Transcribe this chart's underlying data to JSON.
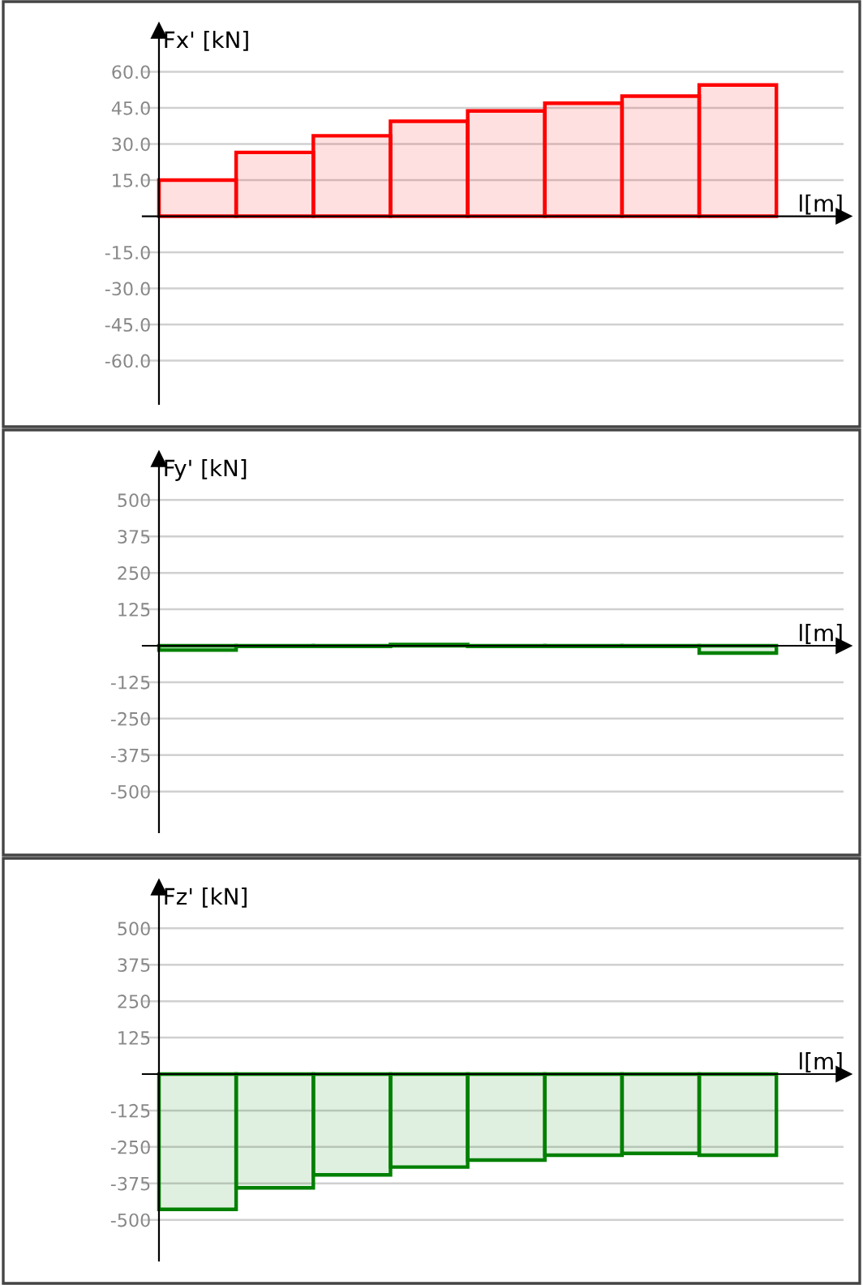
{
  "chart_data": [
    {
      "type": "bar",
      "ylabel": "Fx' [kN]",
      "xlabel": "l[m]",
      "categories": [
        null,
        null,
        null,
        null,
        null,
        null,
        null,
        null
      ],
      "color": "#ff0000",
      "values": [
        15,
        26.5,
        33.4,
        39.4,
        43.7,
        46.9,
        49.9,
        54.5
      ],
      "ylim": [
        -78,
        77
      ],
      "yticks": [
        {
          "value": 60,
          "label": "60.0"
        },
        {
          "value": 45,
          "label": "45.0"
        },
        {
          "value": 30,
          "label": "30.0"
        },
        {
          "value": 15,
          "label": "15.0"
        },
        {
          "value": -15,
          "label": "-15.0"
        },
        {
          "value": -30,
          "label": "-30.0"
        },
        {
          "value": -45,
          "label": "-45.0"
        },
        {
          "value": -60,
          "label": "-60.0"
        }
      ],
      "grid": "y",
      "tick_labels": "y"
    },
    {
      "type": "bar",
      "ylabel": "Fy' [kN]",
      "xlabel": "l[m]",
      "categories": [
        null,
        null,
        null,
        null,
        null,
        null,
        null,
        null
      ],
      "color": "#008000",
      "values": [
        -15,
        -2,
        -2,
        4,
        -2,
        -2,
        -2,
        -25
      ],
      "ylim": [
        -640,
        640
      ],
      "yticks": [
        500,
        375,
        250,
        125,
        -125,
        -250,
        -375,
        -500
      ],
      "grid": "y",
      "tick_labels": "y"
    },
    {
      "type": "bar",
      "ylabel": "Fz' [kN]",
      "xlabel": "l[m]",
      "categories": [
        null,
        null,
        null,
        null,
        null,
        null,
        null,
        null
      ],
      "color": "#008000",
      "values": [
        -464,
        -390,
        -346,
        -319,
        -295,
        -278,
        -272,
        -278
      ],
      "ylim": [
        -640,
        640
      ],
      "yticks": [
        500,
        375,
        250,
        125,
        -125,
        -250,
        -375,
        -500
      ],
      "grid": "y",
      "tick_labels": "y"
    }
  ]
}
